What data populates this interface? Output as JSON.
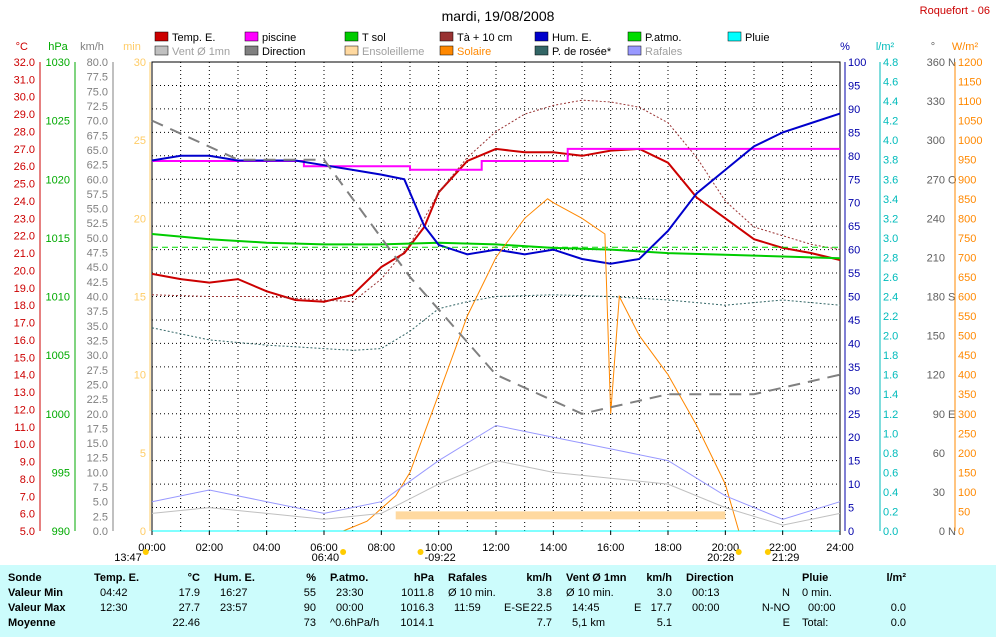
{
  "header": {
    "title": "mardi, 19/08/2008",
    "station": "Roquefort - 06"
  },
  "legend": [
    {
      "label": "Temp. E.",
      "color": "#cc0000",
      "sample": "box"
    },
    {
      "label": "piscine",
      "color": "#ff00ff",
      "sample": "box"
    },
    {
      "label": "T sol",
      "color": "#00cc00",
      "sample": "box"
    },
    {
      "label": "Tà + 10 cm",
      "color": "#993333",
      "sample": "box"
    },
    {
      "label": "Hum. E.",
      "color": "#0000cc",
      "sample": "box"
    },
    {
      "label": "P.atmo.",
      "color": "#00dd00",
      "sample": "box"
    },
    {
      "label": "Pluie",
      "color": "#00ffff",
      "sample": "box"
    },
    {
      "label": "Vent Ø 1mn",
      "color": "#c0c0c0",
      "sample": "box"
    },
    {
      "label": "Direction",
      "color": "#808080",
      "sample": "box"
    },
    {
      "label": "Ensoleilleme",
      "color": "#ffd9a0",
      "sample": "box"
    },
    {
      "label": "Solaire",
      "color": "#ff8800",
      "sample": "box"
    },
    {
      "label": "P. de rosée*",
      "color": "#336666",
      "sample": "box"
    },
    {
      "label": "Rafales",
      "color": "#9999ff",
      "sample": "box"
    }
  ],
  "axes": {
    "celsius": {
      "unit": "°C",
      "color": "#cc0000",
      "ticks": [
        "5.0",
        "6.0",
        "7.0",
        "8.0",
        "9.0",
        "10.0",
        "11.0",
        "12.0",
        "13.0",
        "14.0",
        "15.0",
        "16.0",
        "17.0",
        "18.0",
        "19.0",
        "20.0",
        "21.0",
        "22.0",
        "23.0",
        "24.0",
        "25.0",
        "26.0",
        "27.0",
        "28.0",
        "29.0",
        "30.0",
        "31.0",
        "32.0"
      ]
    },
    "hpa": {
      "unit": "hPa",
      "color": "#00aa00",
      "ticks": [
        "990",
        "995",
        "1000",
        "1005",
        "1010",
        "1015",
        "1020",
        "1025",
        "1030"
      ]
    },
    "kmh": {
      "unit": "km/h",
      "color": "#808080",
      "ticks": [
        "0.0",
        "2.5",
        "5.0",
        "7.5",
        "10.0",
        "12.5",
        "15.0",
        "17.5",
        "20.0",
        "22.5",
        "25.0",
        "27.5",
        "30.0",
        "32.5",
        "35.0",
        "37.5",
        "40.0",
        "42.5",
        "45.0",
        "47.5",
        "50.0",
        "52.5",
        "55.0",
        "57.5",
        "60.0",
        "62.5",
        "65.0",
        "67.5",
        "70.0",
        "72.5",
        "75.0",
        "77.5",
        "80.0"
      ]
    },
    "minutes": {
      "unit": "min",
      "color": "#ffcc66",
      "ticks": [
        "0",
        "5",
        "10",
        "15",
        "20",
        "25",
        "30"
      ]
    },
    "percent": {
      "unit": "%",
      "color": "#0000aa",
      "ticks": [
        "0",
        "5",
        "10",
        "15",
        "20",
        "25",
        "30",
        "35",
        "40",
        "45",
        "50",
        "55",
        "60",
        "65",
        "70",
        "75",
        "80",
        "85",
        "90",
        "95",
        "100"
      ]
    },
    "rain": {
      "unit": "l/m²",
      "color": "#00bbbb",
      "ticks": [
        "0.0",
        "0.2",
        "0.4",
        "0.6",
        "0.8",
        "1.0",
        "1.2",
        "1.4",
        "1.6",
        "1.8",
        "2.0",
        "2.2",
        "2.4",
        "2.6",
        "2.8",
        "3.0",
        "3.2",
        "3.4",
        "3.6",
        "3.8",
        "4.0",
        "4.2",
        "4.4",
        "4.6",
        "4.8"
      ]
    },
    "direction": {
      "unit": "°",
      "color": "#606060",
      "ticks": [
        "0",
        "30",
        "60",
        "90",
        "120",
        "150",
        "180",
        "210",
        "240",
        "270",
        "300",
        "330",
        "360"
      ],
      "cardinals": {
        "0": "N",
        "90": "E",
        "180": "S",
        "270": "O",
        "360": "N"
      }
    },
    "wm2": {
      "unit": "W/m²",
      "color": "#ff8800",
      "ticks": [
        "0",
        "50",
        "100",
        "150",
        "200",
        "250",
        "300",
        "350",
        "400",
        "450",
        "500",
        "550",
        "600",
        "650",
        "700",
        "750",
        "800",
        "850",
        "900",
        "950",
        "1000",
        "1050",
        "1100",
        "1150",
        "1200"
      ]
    },
    "time": {
      "ticks": [
        "00:00",
        "02:00",
        "04:00",
        "06:00",
        "08:00",
        "10:00",
        "12:00",
        "14:00",
        "16:00",
        "18:00",
        "20:00",
        "22:00",
        "24:00"
      ]
    }
  },
  "time_markers": [
    {
      "label": "13:47",
      "time": "-0:13",
      "below": true,
      "icon": "moon"
    },
    {
      "label": "06:40",
      "time": "06:40",
      "below": true,
      "icon": "sun"
    },
    {
      "label": "-09:22",
      "time": "09:22",
      "below": false,
      "icon": "sun"
    },
    {
      "label": "20:28",
      "time": "20:28",
      "below": true,
      "icon": "sun"
    },
    {
      "label": "21:29",
      "time": "21:29",
      "below": false,
      "icon": "moon"
    }
  ],
  "chart_data": {
    "type": "line",
    "title": "mardi, 19/08/2008",
    "x_range": [
      "00:00",
      "24:00"
    ],
    "series": [
      {
        "name": "Temp. E.",
        "axis": "°C",
        "color": "#cc0000",
        "points": [
          [
            0,
            19.8
          ],
          [
            1,
            19.5
          ],
          [
            2,
            19.3
          ],
          [
            3,
            19.5
          ],
          [
            4,
            18.8
          ],
          [
            5,
            18.3
          ],
          [
            6,
            18.2
          ],
          [
            7,
            18.6
          ],
          [
            8,
            20.2
          ],
          [
            8.8,
            21.0
          ],
          [
            9.5,
            22.5
          ],
          [
            10,
            24.5
          ],
          [
            11,
            26.3
          ],
          [
            12,
            27.0
          ],
          [
            13,
            26.8
          ],
          [
            14,
            26.8
          ],
          [
            15,
            26.6
          ],
          [
            16,
            26.9
          ],
          [
            17,
            27.0
          ],
          [
            18,
            26.2
          ],
          [
            19,
            24.2
          ],
          [
            20,
            23.0
          ],
          [
            21,
            21.8
          ],
          [
            22,
            21.3
          ],
          [
            23,
            21.0
          ],
          [
            24,
            20.6
          ]
        ]
      },
      {
        "name": "piscine",
        "axis": "°C",
        "color": "#ff00ff",
        "points": [
          [
            0,
            26.3
          ],
          [
            5.3,
            26.3
          ],
          [
            5.3,
            26.0
          ],
          [
            9,
            26.0
          ],
          [
            9,
            25.8
          ],
          [
            11.5,
            25.8
          ],
          [
            11.5,
            26.3
          ],
          [
            14.5,
            26.3
          ],
          [
            14.5,
            27.0
          ],
          [
            24,
            27.0
          ]
        ]
      },
      {
        "name": "T sol",
        "axis": "°C",
        "color": "#00cc00",
        "points": [
          [
            0,
            22.1
          ],
          [
            2,
            21.8
          ],
          [
            4,
            21.6
          ],
          [
            6,
            21.5
          ],
          [
            8,
            21.5
          ],
          [
            10,
            21.6
          ],
          [
            12,
            21.5
          ],
          [
            14,
            21.3
          ],
          [
            16,
            21.2
          ],
          [
            18,
            21.0
          ],
          [
            20,
            20.9
          ],
          [
            22,
            20.8
          ],
          [
            24,
            20.7
          ]
        ]
      },
      {
        "name": "Tà + 10 cm",
        "axis": "°C",
        "color": "#993333",
        "points": [
          [
            0,
            18.6
          ],
          [
            2,
            18.5
          ],
          [
            4,
            18.5
          ],
          [
            6,
            18.3
          ],
          [
            7,
            18.2
          ],
          [
            8,
            19.5
          ],
          [
            9,
            21.5
          ],
          [
            10,
            24.5
          ],
          [
            11,
            26.5
          ],
          [
            12,
            28.0
          ],
          [
            13,
            29.0
          ],
          [
            14,
            29.5
          ],
          [
            15,
            29.8
          ],
          [
            16,
            29.7
          ],
          [
            17,
            29.4
          ],
          [
            18,
            28.5
          ],
          [
            19,
            26.5
          ],
          [
            20,
            24.0
          ],
          [
            21,
            22.5
          ],
          [
            22,
            22.0
          ],
          [
            23,
            21.5
          ],
          [
            24,
            21.2
          ]
        ]
      },
      {
        "name": "Hum. E.",
        "axis": "%",
        "color": "#0000cc",
        "points": [
          [
            0,
            79
          ],
          [
            1,
            80
          ],
          [
            2,
            80
          ],
          [
            3,
            79
          ],
          [
            4,
            79
          ],
          [
            5,
            79
          ],
          [
            6,
            78
          ],
          [
            7,
            77
          ],
          [
            8,
            76
          ],
          [
            8.8,
            75
          ],
          [
            9.5,
            65
          ],
          [
            10,
            61
          ],
          [
            11,
            59
          ],
          [
            12,
            60
          ],
          [
            13,
            59
          ],
          [
            14,
            60
          ],
          [
            15,
            58
          ],
          [
            16,
            57
          ],
          [
            17,
            58
          ],
          [
            18,
            64
          ],
          [
            19,
            72
          ],
          [
            20,
            77
          ],
          [
            21,
            82
          ],
          [
            22,
            85
          ],
          [
            23,
            87
          ],
          [
            24,
            89
          ]
        ]
      },
      {
        "name": "P.atmo.",
        "axis": "hPa",
        "color": "#00dd00",
        "points": [
          [
            0,
            1014.2
          ],
          [
            24,
            1014.2
          ]
        ]
      },
      {
        "name": "Solaire",
        "axis": "W/m²",
        "color": "#ff8800",
        "points": [
          [
            6.67,
            0
          ],
          [
            7.5,
            25
          ],
          [
            8.5,
            90
          ],
          [
            9,
            150
          ],
          [
            9.5,
            250
          ],
          [
            10,
            350
          ],
          [
            11,
            550
          ],
          [
            12,
            700
          ],
          [
            13,
            800
          ],
          [
            13.8,
            850
          ],
          [
            14,
            840
          ],
          [
            15,
            800
          ],
          [
            15.8,
            760
          ],
          [
            16,
            300
          ],
          [
            16.3,
            600
          ],
          [
            17,
            500
          ],
          [
            18,
            400
          ],
          [
            19,
            270
          ],
          [
            20,
            120
          ],
          [
            20.47,
            0
          ]
        ]
      },
      {
        "name": "P. de rosée*",
        "axis": "°C",
        "color": "#336666",
        "points": [
          [
            0,
            16.7
          ],
          [
            2,
            16.0
          ],
          [
            4,
            15.7
          ],
          [
            6,
            15.5
          ],
          [
            7,
            15.4
          ],
          [
            8,
            15.5
          ],
          [
            9,
            16.5
          ],
          [
            10,
            17.8
          ],
          [
            11,
            18.2
          ],
          [
            12,
            18.5
          ],
          [
            14,
            18.6
          ],
          [
            16,
            18.5
          ],
          [
            18,
            18.3
          ],
          [
            20,
            18.0
          ],
          [
            22,
            18.3
          ],
          [
            24,
            18.0
          ]
        ]
      },
      {
        "name": "Ensoleilleme",
        "axis": "min",
        "color": "#ffd9a0",
        "points": [
          [
            8.5,
            1
          ],
          [
            20,
            1
          ]
        ]
      },
      {
        "name": "Rafales",
        "axis": "km/h",
        "color": "#9999ff",
        "points": [
          [
            0,
            5
          ],
          [
            2,
            7
          ],
          [
            4,
            5
          ],
          [
            6,
            3
          ],
          [
            8,
            5
          ],
          [
            10,
            12
          ],
          [
            12,
            18
          ],
          [
            14,
            16
          ],
          [
            16,
            14
          ],
          [
            18,
            12
          ],
          [
            20,
            6
          ],
          [
            22,
            2
          ],
          [
            24,
            5
          ]
        ]
      },
      {
        "name": "Vent Ø 1mn",
        "axis": "km/h",
        "color": "#c0c0c0",
        "points": [
          [
            0,
            3
          ],
          [
            2,
            4
          ],
          [
            4,
            3
          ],
          [
            6,
            2
          ],
          [
            8,
            3
          ],
          [
            10,
            8
          ],
          [
            12,
            12
          ],
          [
            14,
            10
          ],
          [
            16,
            9
          ],
          [
            18,
            8
          ],
          [
            20,
            4
          ],
          [
            22,
            1
          ],
          [
            24,
            3
          ]
        ]
      },
      {
        "name": "Direction",
        "axis": "°",
        "color": "#808080",
        "points": [
          [
            0,
            315
          ],
          [
            3,
            285
          ],
          [
            6,
            285
          ],
          [
            9,
            195
          ],
          [
            12,
            120
          ],
          [
            15,
            90
          ],
          [
            18,
            105
          ],
          [
            21,
            105
          ],
          [
            24,
            120
          ]
        ]
      },
      {
        "name": "Pluie",
        "axis": "l/m²",
        "color": "#00ffff",
        "points": [
          [
            0,
            0
          ],
          [
            24,
            0
          ]
        ]
      }
    ]
  },
  "stats": {
    "rows": [
      "Valeur Min",
      "Valeur Max",
      "Moyenne"
    ],
    "sonde": {
      "header": "Sonde"
    },
    "temp": {
      "header": "Temp. E.",
      "unit": "°C",
      "min_time": "04:42",
      "min": "17.9",
      "max_time": "12:30",
      "max": "27.7",
      "avg": "22.46"
    },
    "hum": {
      "header": "Hum. E.",
      "unit": "%",
      "min_time": "16:27",
      "min": "55",
      "max_time": "23:57",
      "max": "90",
      "avg": "73"
    },
    "patmo": {
      "header": "P.atmo.",
      "unit": "hPa",
      "min_time": "23:30",
      "min": "1011.8",
      "max_time": "00:00",
      "max": "1016.3",
      "avg_label": "^0.6hPa/h",
      "avg": "1014.1"
    },
    "rafales": {
      "header": "Rafales",
      "unit": "km/h",
      "r1_label": "Ø 10 min.",
      "r1_val": "3.8",
      "r2_time": "11:59",
      "r2_dir": "E-SE",
      "r2_val": "22.5",
      "avg": "7.7"
    },
    "vent": {
      "header": "Vent Ø 1mn",
      "unit": "km/h",
      "r1_label": "Ø 10 min.",
      "r1_val": "3.0",
      "r2_time": "14:45",
      "r2_dir": "E",
      "r2_val": "17.7",
      "r3_label": "5,1 km",
      "avg": "5.1"
    },
    "direction": {
      "header": "Direction",
      "r1_time": "00:13",
      "r1_val": "N",
      "r2_time": "00:00",
      "r2_val": "N-NO",
      "avg": "E"
    },
    "pluie": {
      "header": "Pluie",
      "unit": "l/m²",
      "r1_label": "0 min.",
      "r2_time": "00:00",
      "r2_val": "0.0",
      "r3_label": "Total:",
      "r3_val": "0.0"
    }
  }
}
